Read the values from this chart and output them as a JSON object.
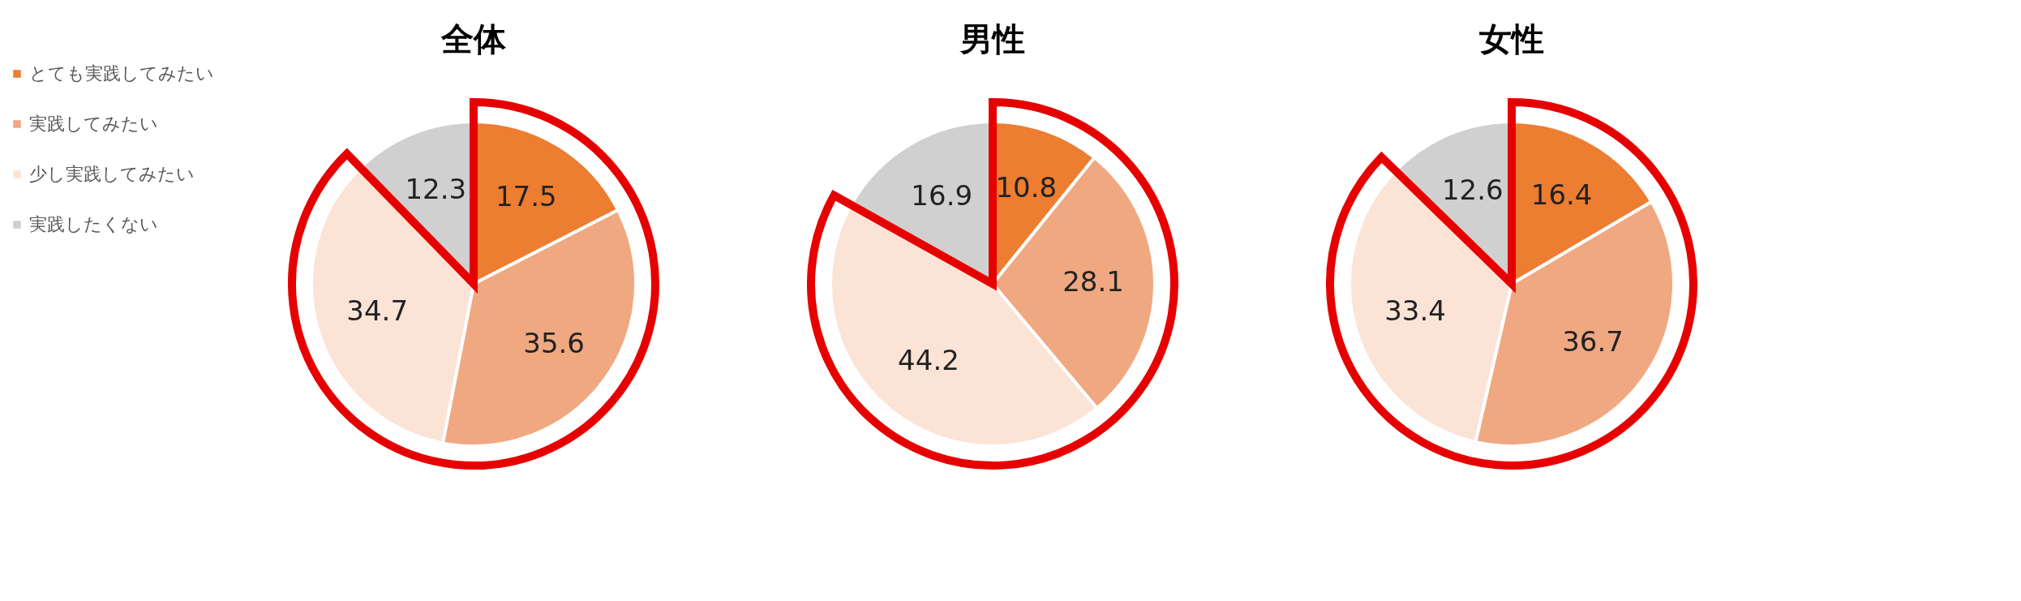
{
  "chart_data": [
    {
      "type": "pie",
      "title": "全体",
      "categories": [
        "とても実践してみたい",
        "実践してみたい",
        "少し実践してみたい",
        "実践したくない"
      ],
      "values": [
        17.5,
        35.6,
        34.7,
        12.3
      ],
      "colors": [
        "#ed7d31",
        "#f0a881",
        "#fbe3d6",
        "#d0d0d0"
      ],
      "data_labels": true,
      "legend": "left"
    },
    {
      "type": "pie",
      "title": "男性",
      "values": [
        10.8,
        28.1,
        44.2,
        16.9
      ],
      "colors": [
        "#ed7d31",
        "#f0a881",
        "#fbe3d6",
        "#d0d0d0"
      ],
      "data_labels": true
    },
    {
      "type": "pie",
      "title": "女性",
      "values": [
        16.4,
        36.7,
        33.4,
        12.6
      ],
      "colors": [
        "#ed7d31",
        "#f0a881",
        "#fbe3d6",
        "#d0d0d0"
      ],
      "data_labels": true
    }
  ]
}
